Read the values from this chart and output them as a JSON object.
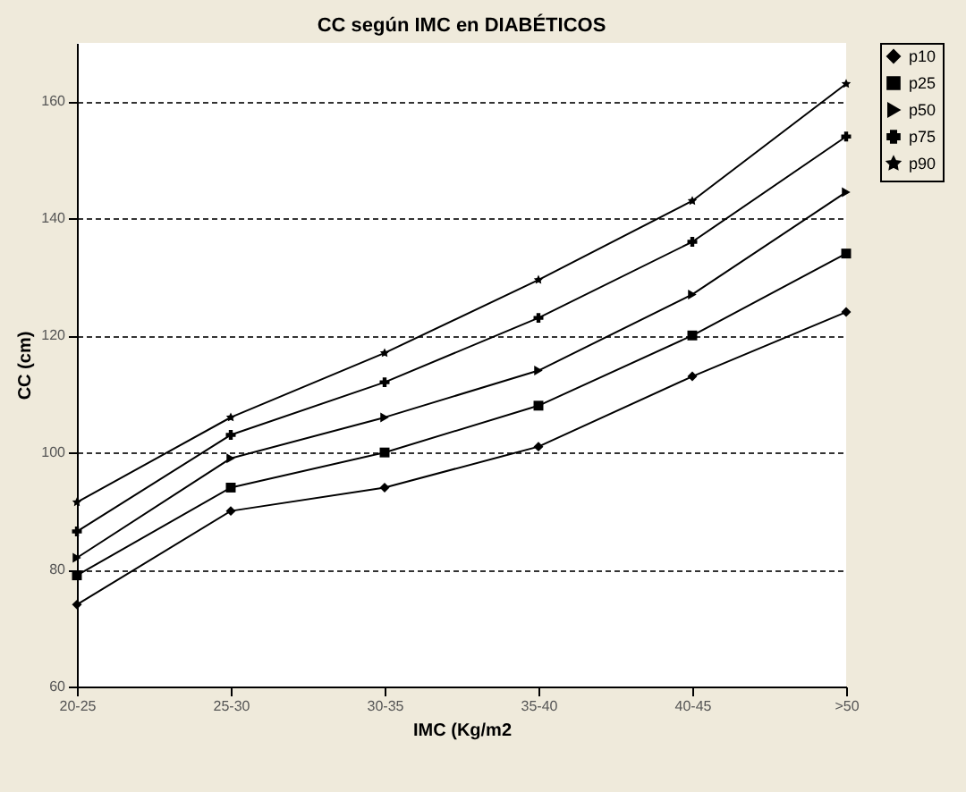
{
  "chart_data": {
    "type": "line",
    "title": "CC según IMC en DIABÉTICOS",
    "xlabel": "IMC (Kg/m2",
    "ylabel": "CC (cm)",
    "categories": [
      "20-25",
      "25-30",
      "30-35",
      "35-40",
      "40-45",
      ">50"
    ],
    "series": [
      {
        "name": "p10",
        "color": "#000000",
        "marker": "diamond",
        "values": [
          74,
          90,
          94,
          101,
          113,
          124
        ]
      },
      {
        "name": "p25",
        "color": "#000000",
        "marker": "square",
        "values": [
          79,
          94,
          100,
          108,
          120,
          134
        ]
      },
      {
        "name": "p50",
        "color": "#000000",
        "marker": "triangle",
        "values": [
          82,
          99,
          106,
          114,
          127,
          144.5
        ]
      },
      {
        "name": "p75",
        "color": "#000000",
        "marker": "cross",
        "values": [
          86.5,
          103,
          112,
          123,
          136,
          154
        ]
      },
      {
        "name": "p90",
        "color": "#000000",
        "marker": "star",
        "values": [
          91.5,
          106,
          117,
          129.5,
          143,
          163
        ]
      }
    ],
    "ylim": [
      60,
      170
    ],
    "yticks": [
      60,
      80,
      100,
      120,
      140,
      160
    ],
    "grid": "y",
    "legend": "right",
    "line_style": "solid"
  }
}
